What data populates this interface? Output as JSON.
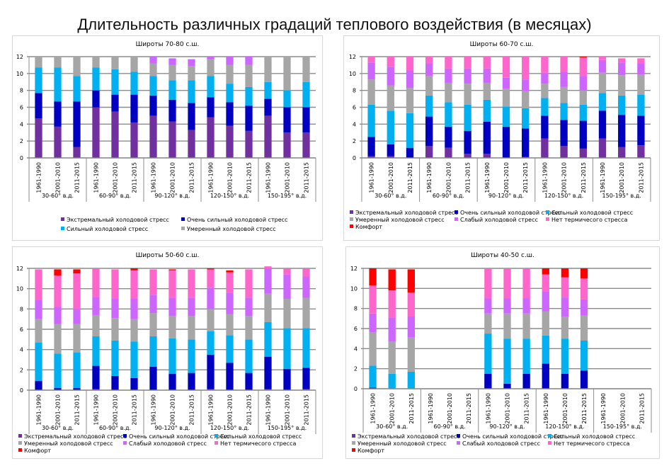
{
  "title": "Длительность различных градаций теплового воздействия (в месяцах)",
  "legend_labels": {
    "extreme": "Экстремальный холодовой стресс",
    "very_strong": "Очень сильный холодовой стресс",
    "strong": "Сильный холодовой стресс",
    "moderate": "Умеренный холодовой стресс",
    "weak": "Слабый холодовой стресс",
    "none": "Нет термичесого стресса",
    "comfort": "Комфорт"
  },
  "colors": {
    "extreme": "#7030a0",
    "very_strong": "#0000c0",
    "strong": "#00b0f0",
    "moderate": "#a6a6a6",
    "weak": "#cc66ff",
    "none": "#ff66cc",
    "comfort": "#ff0000"
  },
  "chart_data": [
    {
      "type": "bar",
      "stacked": true,
      "title": "Широты 70-80 с.ш.",
      "ylim": [
        0,
        12
      ],
      "yticks": [
        "0",
        "2",
        "4",
        "6",
        "8",
        "10",
        "12"
      ],
      "groups": [
        "30-60° в.д.",
        "60-90° в.д.",
        "90-120° в.д.",
        "120-150° в.д.",
        "150-195° в.д."
      ],
      "periods": [
        "1961-1990",
        "2001-2010",
        "2011-2015"
      ],
      "legend_keys": [
        "extreme",
        "very_strong",
        "strong",
        "moderate"
      ],
      "series": [
        {
          "key": "extreme",
          "values": [
            4.7,
            3.7,
            1.3,
            6.0,
            5.5,
            4.2,
            5.0,
            4.3,
            3.3,
            4.8,
            3.8,
            3.2,
            5.0,
            3.0,
            3.0
          ]
        },
        {
          "key": "very_strong",
          "values": [
            3.0,
            3.0,
            5.4,
            2.0,
            2.0,
            3.3,
            2.4,
            2.6,
            3.2,
            2.4,
            2.8,
            3.0,
            2.0,
            3.0,
            3.0
          ]
        },
        {
          "key": "strong",
          "values": [
            3.0,
            4.0,
            3.0,
            2.7,
            3.0,
            2.7,
            2.3,
            2.3,
            2.7,
            2.5,
            2.2,
            2.2,
            2.0,
            2.0,
            3.0
          ]
        },
        {
          "key": "moderate",
          "values": [
            1.3,
            1.3,
            2.3,
            1.3,
            1.5,
            1.8,
            1.5,
            1.8,
            1.7,
            2.0,
            2.2,
            2.6,
            3.0,
            4.0,
            3.0
          ]
        },
        {
          "key": "weak",
          "values": [
            0,
            0,
            0,
            0,
            0,
            0,
            0.8,
            0.8,
            0.8,
            0.3,
            1.0,
            1.0,
            0,
            0,
            0
          ]
        }
      ]
    },
    {
      "type": "bar",
      "stacked": true,
      "title": "Широты 60-70 с.ш.",
      "ylim": [
        0,
        12
      ],
      "yticks": [
        "0",
        "2",
        "4",
        "6",
        "8",
        "10",
        "12"
      ],
      "groups": [
        "30-60° в.д.",
        "60-90° в.д.",
        "90-120° в.д.",
        "120-150° в.д.",
        "150-195° в.д."
      ],
      "periods": [
        "1961-1990",
        "2001-2010",
        "2011-2015"
      ],
      "legend_keys": [
        "extreme",
        "very_strong",
        "strong",
        "moderate",
        "weak",
        "none",
        "comfort"
      ],
      "series": [
        {
          "key": "extreme",
          "values": [
            0.2,
            0.2,
            0,
            1.4,
            1.2,
            0.5,
            0.5,
            0,
            0.1,
            2.3,
            1.4,
            1.1,
            2.3,
            1.3,
            1.5
          ]
        },
        {
          "key": "very_strong",
          "values": [
            2.3,
            1.4,
            1.2,
            3.5,
            2.5,
            2.7,
            3.8,
            3.7,
            3.4,
            2.7,
            3.1,
            3.3,
            3.3,
            3.8,
            3.5
          ]
        },
        {
          "key": "strong",
          "values": [
            3.8,
            4.0,
            4.1,
            2.5,
            2.9,
            3.1,
            2.6,
            2.4,
            2.4,
            2.1,
            2.0,
            1.9,
            2.1,
            2.3,
            2.5
          ]
        },
        {
          "key": "moderate",
          "values": [
            3.0,
            3.0,
            3.0,
            2.3,
            2.3,
            2.5,
            2.0,
            2.1,
            2.0,
            1.7,
            1.9,
            1.7,
            2.4,
            2.4,
            2.4
          ]
        },
        {
          "key": "weak",
          "values": [
            2.0,
            2.2,
            2.1,
            1.5,
            1.7,
            1.8,
            1.7,
            1.3,
            1.4,
            1.3,
            1.8,
            1.7,
            1.5,
            1.5,
            1.3
          ]
        },
        {
          "key": "none",
          "values": [
            0.7,
            1.2,
            1.6,
            0.8,
            1.4,
            1.4,
            1.4,
            2.5,
            2.7,
            1.9,
            1.8,
            2.2,
            0.4,
            0.5,
            0.6
          ]
        },
        {
          "key": "comfort",
          "values": [
            0,
            0,
            0,
            0,
            0,
            0,
            0,
            0,
            0,
            0,
            0,
            0.1,
            0,
            0,
            0
          ]
        }
      ]
    },
    {
      "type": "bar",
      "stacked": true,
      "title": "Широты 50-60 с.ш.",
      "ylim": [
        0,
        12
      ],
      "yticks": [
        "0",
        "2",
        "4",
        "6",
        "8",
        "10",
        "12"
      ],
      "groups": [
        "30-60° в.д.",
        "60-90° в.д.",
        "90-120° в.д.",
        "120-150° в.д.",
        "150-195° в.д."
      ],
      "periods": [
        "1961-1990",
        "2001-2010",
        "2011-2015"
      ],
      "legend_keys": [
        "extreme",
        "very_strong",
        "strong",
        "moderate",
        "weak",
        "none",
        "comfort"
      ],
      "series": [
        {
          "key": "extreme",
          "values": [
            0,
            0,
            0,
            0.1,
            0,
            0,
            0,
            0,
            0,
            0.1,
            0,
            0,
            0.1,
            0,
            0.1
          ]
        },
        {
          "key": "very_strong",
          "values": [
            0.9,
            0.2,
            0.2,
            2.3,
            1.4,
            1.2,
            2.3,
            1.6,
            1.7,
            3.4,
            2.7,
            1.7,
            3.2,
            2.1,
            2.1
          ]
        },
        {
          "key": "strong",
          "values": [
            3.8,
            3.4,
            3.5,
            2.9,
            3.5,
            3.6,
            3.0,
            3.5,
            3.3,
            2.3,
            2.7,
            3.3,
            3.4,
            4.0,
            3.9
          ]
        },
        {
          "key": "moderate",
          "values": [
            2.3,
            2.9,
            2.8,
            2.1,
            2.2,
            2.2,
            2.3,
            2.2,
            2.3,
            2.2,
            2.1,
            2.3,
            2.8,
            2.9,
            3.0
          ]
        },
        {
          "key": "weak",
          "values": [
            1.9,
            1.7,
            1.5,
            1.8,
            1.9,
            2.0,
            1.8,
            1.8,
            1.8,
            2.1,
            2.1,
            1.8,
            2.5,
            2.4,
            2.1
          ]
        },
        {
          "key": "none",
          "values": [
            3.0,
            3.1,
            3.5,
            2.8,
            2.9,
            2.8,
            2.5,
            2.7,
            2.8,
            1.8,
            2.0,
            2.8,
            0.2,
            0.6,
            0.8
          ]
        },
        {
          "key": "comfort",
          "values": [
            0,
            0.6,
            0.4,
            0,
            0,
            0.2,
            0,
            0.1,
            0,
            0.1,
            0.2,
            0,
            0,
            0,
            0
          ]
        }
      ]
    },
    {
      "type": "bar",
      "stacked": true,
      "title": "Широты 40-50 с.ш.",
      "ylim": [
        0,
        12
      ],
      "yticks": [
        "0",
        "2",
        "4",
        "6",
        "8",
        "10",
        "12"
      ],
      "groups": [
        "30-60° в.д.",
        "60-90° в.д.",
        "90-120° в.д.",
        "120-150° в.д.",
        "150-195° в.д."
      ],
      "periods": [
        "1961-1990",
        "2001-2010",
        "2011-2015"
      ],
      "legend_keys": [
        "extreme",
        "very_strong",
        "strong",
        "moderate",
        "weak",
        "none",
        "comfort"
      ],
      "series": [
        {
          "key": "extreme",
          "values": [
            0,
            0,
            0,
            0,
            0,
            0,
            0,
            0,
            0,
            0,
            0,
            0,
            0,
            0,
            0
          ]
        },
        {
          "key": "very_strong",
          "values": [
            0.1,
            0,
            0,
            0,
            0,
            0,
            1.5,
            0.5,
            1.5,
            2.5,
            1.5,
            1.8,
            0,
            0,
            0
          ]
        },
        {
          "key": "strong",
          "values": [
            2.2,
            1.5,
            1.7,
            0,
            0,
            0,
            4.0,
            4.5,
            3.5,
            2.8,
            3.5,
            3.0,
            0,
            0,
            0
          ]
        },
        {
          "key": "moderate",
          "values": [
            3.3,
            3.2,
            3.4,
            0,
            0,
            0,
            2.0,
            2.5,
            2.5,
            2.4,
            2.2,
            2.5,
            0,
            0,
            0
          ]
        },
        {
          "key": "weak",
          "values": [
            1.9,
            2.4,
            2.1,
            0,
            0,
            0,
            1.5,
            1.5,
            1.5,
            2.0,
            1.9,
            1.6,
            0,
            0,
            0
          ]
        },
        {
          "key": "none",
          "values": [
            2.8,
            2.7,
            2.4,
            0,
            0,
            0,
            3.0,
            3.0,
            3.0,
            1.7,
            2.0,
            2.1,
            0,
            0,
            0
          ]
        },
        {
          "key": "comfort",
          "values": [
            1.7,
            2.1,
            2.3,
            0,
            0,
            0,
            0,
            0,
            0,
            0.6,
            0.9,
            1.0,
            0,
            0,
            0
          ]
        }
      ]
    }
  ]
}
